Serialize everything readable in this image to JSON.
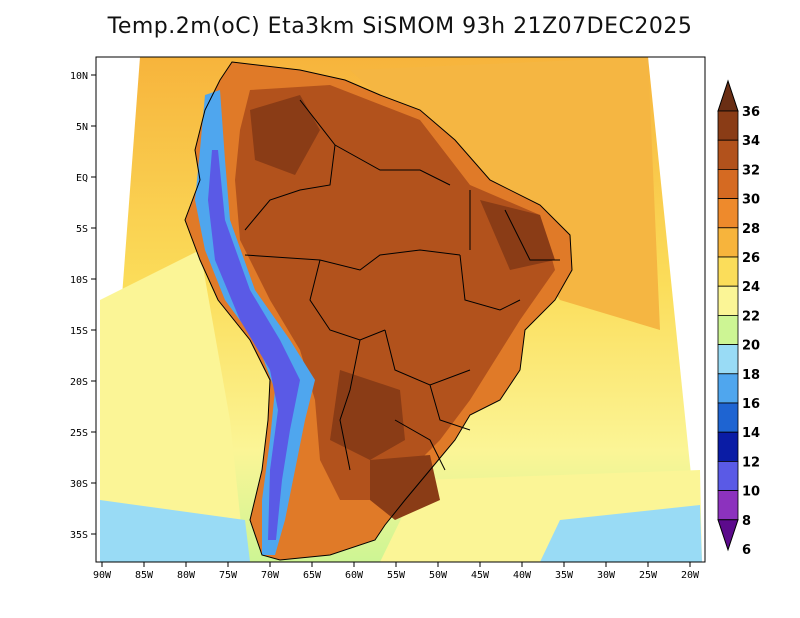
{
  "title": "Temp.2m(oC) Eta3km SiSMOM 93h 21Z07DEC2025",
  "axes": {
    "lat_ticks": [
      "10N",
      "5N",
      "EQ",
      "5S",
      "10S",
      "15S",
      "20S",
      "25S",
      "30S",
      "35S"
    ],
    "lon_ticks": [
      "90W",
      "85W",
      "80W",
      "75W",
      "70W",
      "65W",
      "60W",
      "55W",
      "50W",
      "45W",
      "40W",
      "35W",
      "30W",
      "25W",
      "20W"
    ]
  },
  "colorbar": {
    "labels": [
      "36",
      "34",
      "32",
      "30",
      "28",
      "26",
      "24",
      "22",
      "20",
      "18",
      "16",
      "14",
      "12",
      "10",
      "8",
      "6"
    ],
    "colors": [
      "#6a2e14",
      "#8a3c16",
      "#b2521c",
      "#d56a22",
      "#ee8a2c",
      "#f7b43c",
      "#fbdd5a",
      "#fbf596",
      "#cdf594",
      "#99dbf5",
      "#4fa6ee",
      "#1e64d2",
      "#0a1ca5",
      "#5a5ae6",
      "#8c32be",
      "#5c0a8c"
    ]
  },
  "map": {
    "palette": {
      "ocean_warm": "#f5b642",
      "ocean_mid": "#fbdd5a",
      "ocean_cool": "#fbf596",
      "ocean_cold": "#cdf594",
      "ocean_coldest": "#99dbf5",
      "land_warm": "#e07a28",
      "land_hot": "#b2521c",
      "land_hottest": "#8a3c16",
      "andes_cold": "#4fa6ee",
      "andes_coldest": "#5a5ae6",
      "border": "#000000"
    }
  }
}
